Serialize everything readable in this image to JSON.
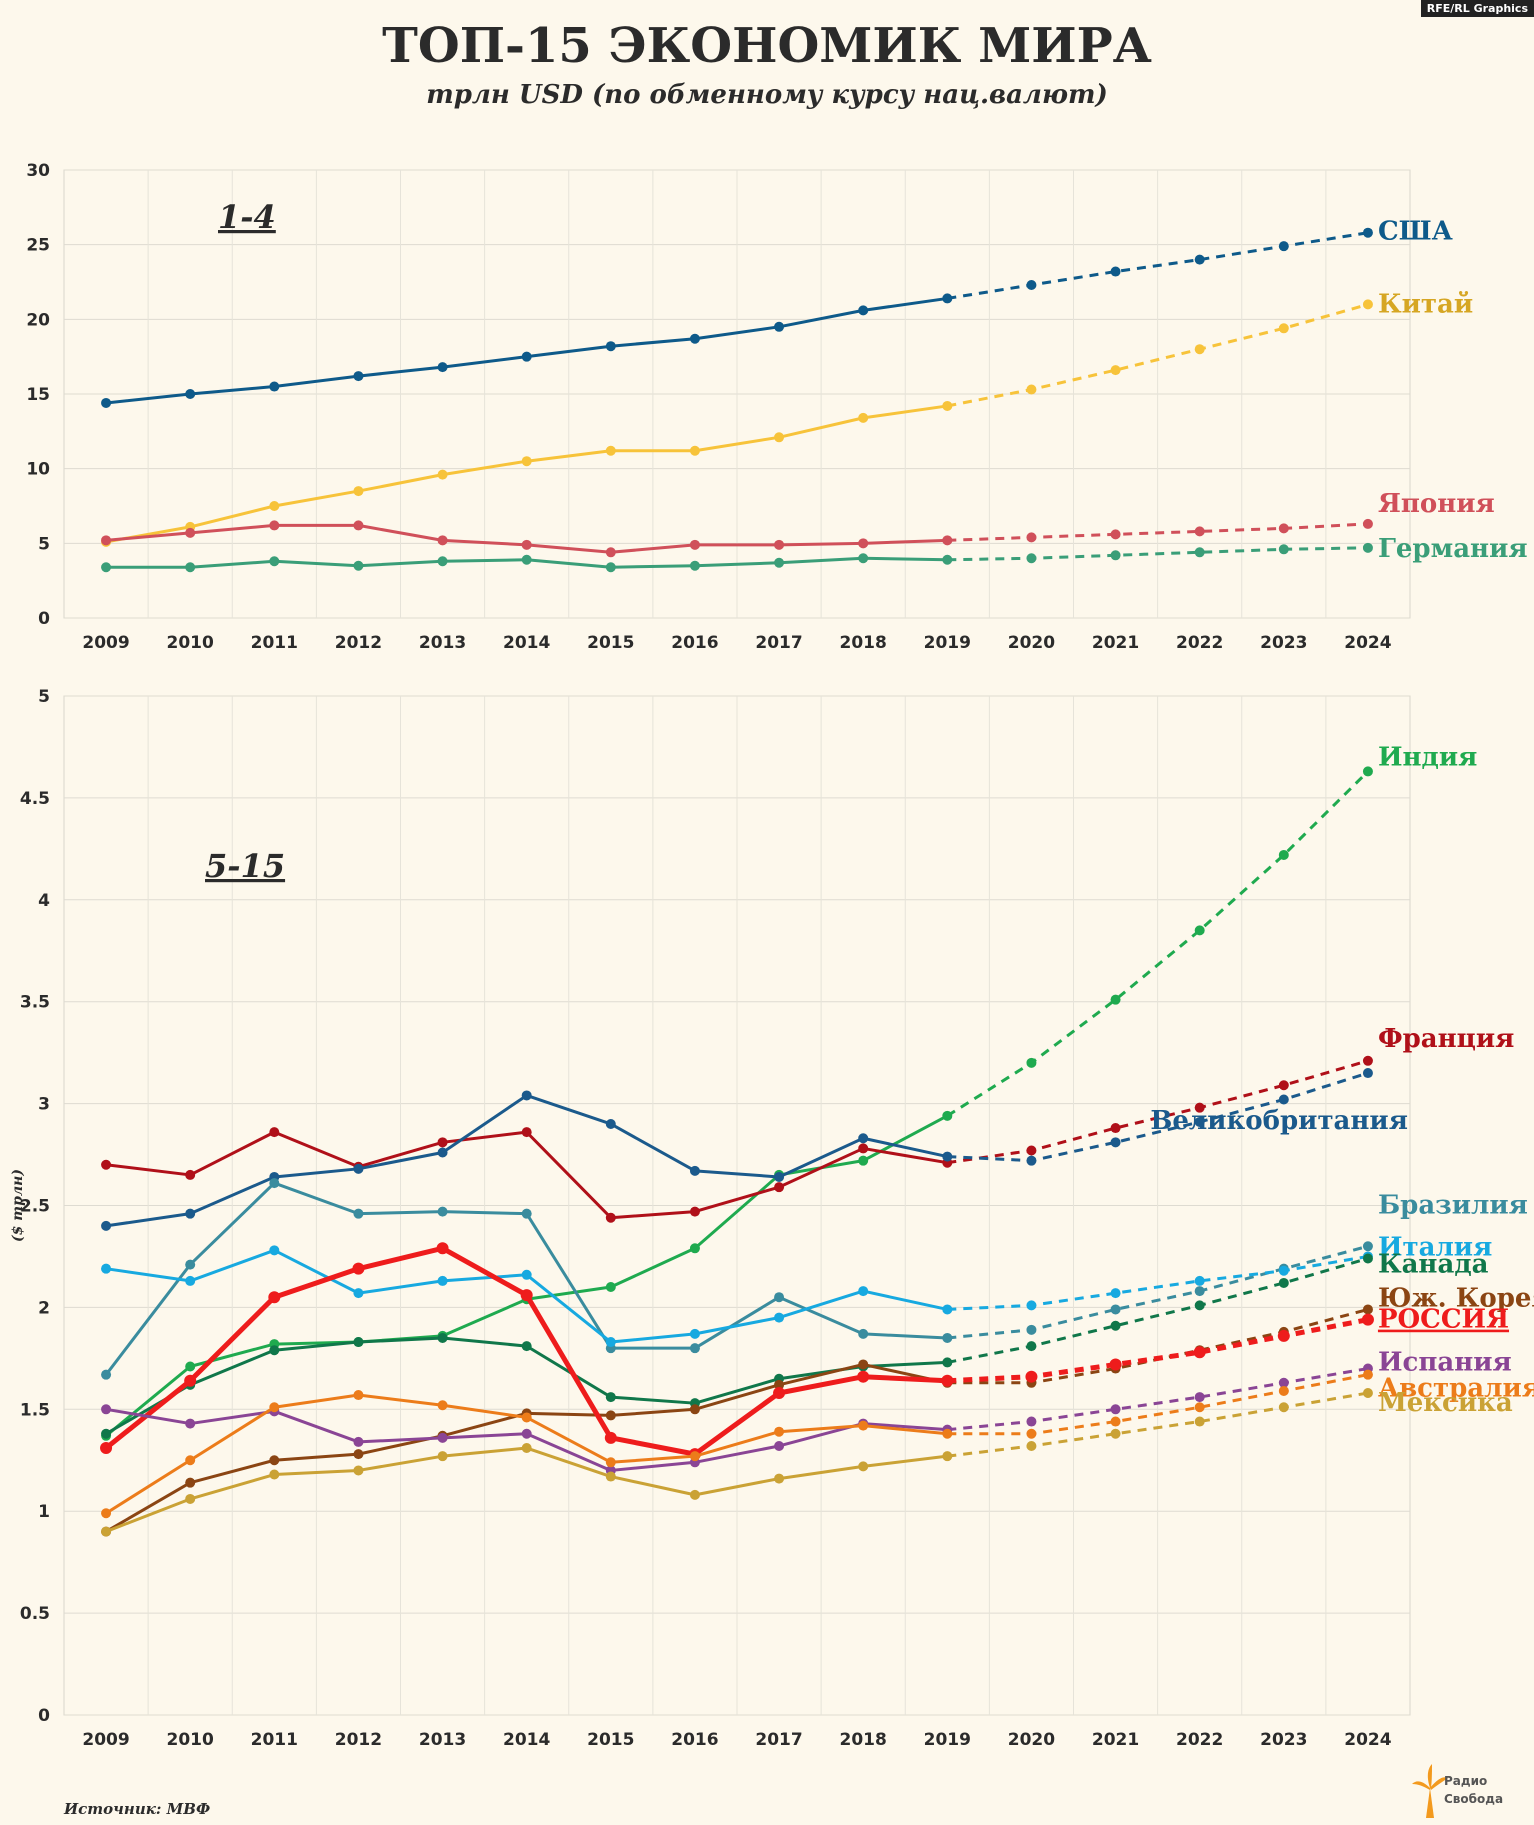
{
  "brand_tag": "RFE/RL Graphics",
  "title": "ТОП-15 ЭКОНОМИК МИРА",
  "subtitle": "трлн USD (по обменному курсу нац.валют)",
  "source": "Источник: МВФ",
  "logo": {
    "line1": "Радио",
    "line2": "Свобода"
  },
  "chart_data": [
    {
      "type": "line",
      "label": "1-4",
      "x": [
        "2009",
        "2010",
        "2011",
        "2012",
        "2013",
        "2014",
        "2015",
        "2016",
        "2017",
        "2018",
        "2019",
        "2020",
        "2021",
        "2022",
        "2023",
        "2024"
      ],
      "ylim": [
        0,
        30
      ],
      "yticks": [
        0,
        5,
        10,
        15,
        20,
        25,
        30
      ],
      "forecast_from": "2019",
      "grid": true,
      "series": [
        {
          "name": "США",
          "color": "#0e5a8a",
          "values": [
            14.4,
            15.0,
            15.5,
            16.2,
            16.8,
            17.5,
            18.2,
            18.7,
            19.5,
            20.6,
            21.4,
            22.3,
            23.2,
            24.0,
            24.9,
            25.8
          ]
        },
        {
          "name": "Китай",
          "color": "#f7c33a",
          "label_color": "#d6a623",
          "values": [
            5.1,
            6.1,
            7.5,
            8.5,
            9.6,
            10.5,
            11.2,
            11.2,
            12.1,
            13.4,
            14.2,
            15.3,
            16.6,
            18.0,
            19.4,
            21.0
          ]
        },
        {
          "name": "Япония",
          "color": "#d0505a",
          "values": [
            5.2,
            5.7,
            6.2,
            6.2,
            5.2,
            4.9,
            4.4,
            4.9,
            4.9,
            5.0,
            5.2,
            5.4,
            5.6,
            5.8,
            6.0,
            6.3
          ]
        },
        {
          "name": "Германия",
          "color": "#3a9e78",
          "values": [
            3.4,
            3.4,
            3.8,
            3.5,
            3.8,
            3.9,
            3.4,
            3.5,
            3.7,
            4.0,
            3.9,
            4.0,
            4.2,
            4.4,
            4.6,
            4.7
          ]
        }
      ]
    },
    {
      "type": "line",
      "label": "5-15",
      "ylabel": "($ трлн)",
      "x": [
        "2009",
        "2010",
        "2011",
        "2012",
        "2013",
        "2014",
        "2015",
        "2016",
        "2017",
        "2018",
        "2019",
        "2020",
        "2021",
        "2022",
        "2023",
        "2024"
      ],
      "ylim": [
        0,
        5
      ],
      "yticks": [
        0,
        0.5,
        1,
        1.5,
        2,
        2.5,
        3,
        3.5,
        4,
        4.5,
        5
      ],
      "forecast_from": "2019",
      "grid": true,
      "series": [
        {
          "name": "Индия",
          "color": "#1faa4f",
          "values": [
            1.37,
            1.71,
            1.82,
            1.83,
            1.86,
            2.04,
            2.1,
            2.29,
            2.65,
            2.72,
            2.94,
            3.2,
            3.51,
            3.85,
            4.22,
            4.63
          ]
        },
        {
          "name": "Франция",
          "color": "#b01019",
          "values": [
            2.7,
            2.65,
            2.86,
            2.69,
            2.81,
            2.86,
            2.44,
            2.47,
            2.59,
            2.78,
            2.71,
            2.77,
            2.88,
            2.98,
            3.09,
            3.21
          ]
        },
        {
          "name": "Великобритания",
          "color": "#1b5a8c",
          "values": [
            2.4,
            2.46,
            2.64,
            2.68,
            2.76,
            3.04,
            2.9,
            2.67,
            2.64,
            2.83,
            2.74,
            2.72,
            2.81,
            2.91,
            3.02,
            3.15
          ]
        },
        {
          "name": "Бразилия",
          "color": "#3a8c9e",
          "values": [
            1.67,
            2.21,
            2.61,
            2.46,
            2.47,
            2.46,
            1.8,
            1.8,
            2.05,
            1.87,
            1.85,
            1.89,
            1.99,
            2.08,
            2.19,
            2.3
          ]
        },
        {
          "name": "Италия",
          "color": "#17a9e0",
          "values": [
            2.19,
            2.13,
            2.28,
            2.07,
            2.13,
            2.16,
            1.83,
            1.87,
            1.95,
            2.08,
            1.99,
            2.01,
            2.07,
            2.13,
            2.18,
            2.25
          ]
        },
        {
          "name": "Канада",
          "color": "#10774a",
          "values": [
            1.38,
            1.62,
            1.79,
            1.83,
            1.85,
            1.81,
            1.56,
            1.53,
            1.65,
            1.71,
            1.73,
            1.81,
            1.91,
            2.01,
            2.12,
            2.24
          ]
        },
        {
          "name": "Юж. Корея",
          "color": "#8b4513",
          "values": [
            0.9,
            1.14,
            1.25,
            1.28,
            1.37,
            1.48,
            1.47,
            1.5,
            1.62,
            1.72,
            1.63,
            1.63,
            1.7,
            1.79,
            1.88,
            1.99
          ]
        },
        {
          "name": "РОССИЯ",
          "color": "#ee1c1c",
          "thick": true,
          "values": [
            1.31,
            1.64,
            2.05,
            2.19,
            2.29,
            2.06,
            1.36,
            1.28,
            1.58,
            1.66,
            1.64,
            1.66,
            1.72,
            1.78,
            1.86,
            1.94
          ]
        },
        {
          "name": "Испания",
          "color": "#8a4595",
          "values": [
            1.5,
            1.43,
            1.49,
            1.34,
            1.36,
            1.38,
            1.2,
            1.24,
            1.32,
            1.43,
            1.4,
            1.44,
            1.5,
            1.56,
            1.63,
            1.7
          ]
        },
        {
          "name": "Австралия",
          "color": "#ec7c1a",
          "values": [
            0.99,
            1.25,
            1.51,
            1.57,
            1.52,
            1.46,
            1.24,
            1.27,
            1.39,
            1.42,
            1.38,
            1.38,
            1.44,
            1.51,
            1.59,
            1.67
          ]
        },
        {
          "name": "Мексика",
          "color": "#caa235",
          "values": [
            0.9,
            1.06,
            1.18,
            1.2,
            1.27,
            1.31,
            1.17,
            1.08,
            1.16,
            1.22,
            1.27,
            1.32,
            1.38,
            1.44,
            1.51,
            1.58
          ]
        }
      ]
    }
  ]
}
